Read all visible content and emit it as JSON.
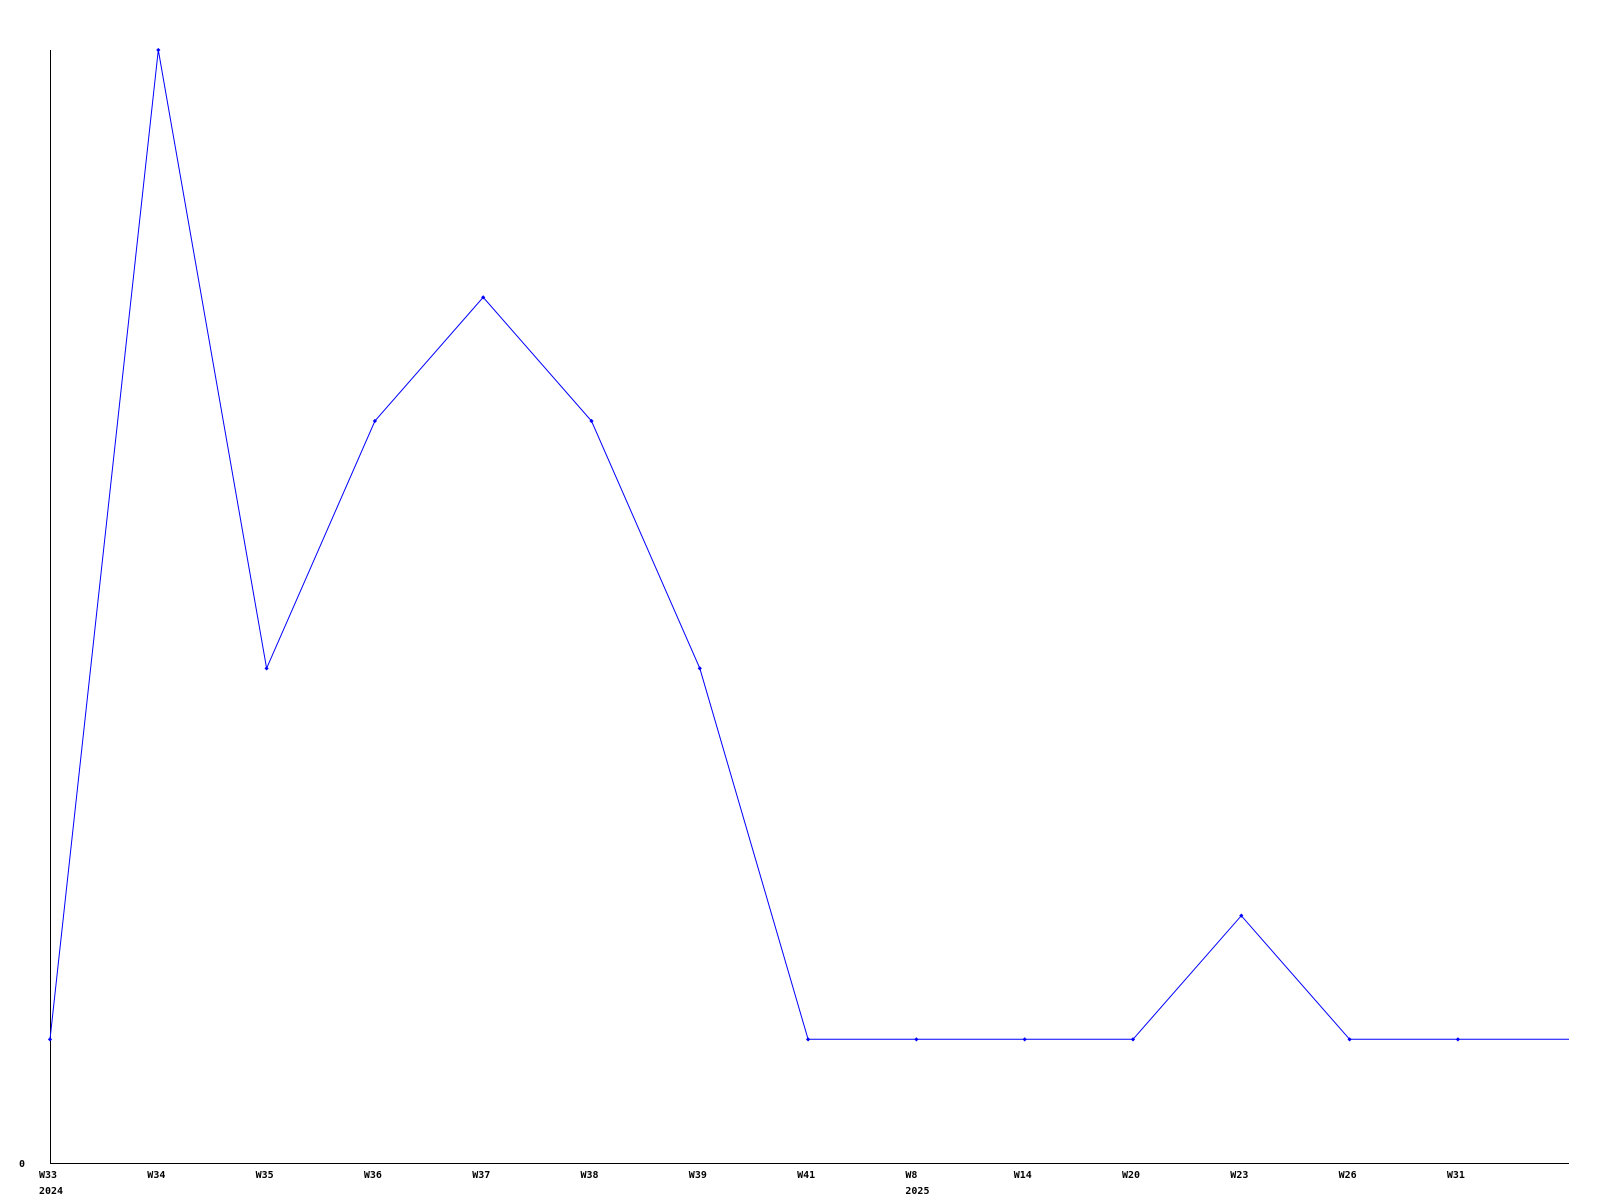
{
  "chart_data": {
    "type": "line",
    "title": "",
    "xlabel": "",
    "ylabel": "",
    "categories": [
      "W33",
      "W34",
      "W35",
      "W36",
      "W37",
      "W38",
      "W39",
      "W41",
      "W8",
      "W14",
      "W20",
      "W23",
      "W26",
      "W31"
    ],
    "year_labels": [
      {
        "index": 0,
        "label": "2024"
      },
      {
        "index": 8,
        "label": "2025"
      }
    ],
    "series": [
      {
        "values": [
          1,
          9,
          4,
          6,
          7,
          6,
          4,
          1,
          1,
          1,
          1,
          2,
          1,
          1
        ]
      }
    ],
    "y_tick_labels": [
      "0"
    ],
    "ylim": [
      0,
      9
    ],
    "grid": false,
    "line_color": "#0000ff",
    "axis_color": "#000000"
  }
}
